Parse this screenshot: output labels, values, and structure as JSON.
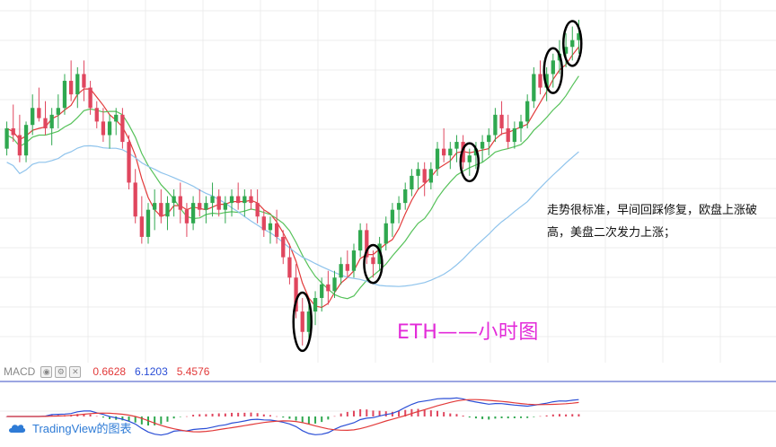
{
  "chart_data": {
    "type": "candlestick",
    "symbol_label": "ETH——小时图",
    "annotation": "走势很标准，早间回踩修复，欧盘上涨破高，美盘二次发力上涨；",
    "ylim": [
      0,
      100
    ],
    "candles": [
      [
        62,
        70,
        60,
        68
      ],
      [
        68,
        75,
        64,
        66
      ],
      [
        66,
        72,
        58,
        60
      ],
      [
        60,
        70,
        58,
        69
      ],
      [
        69,
        78,
        66,
        74
      ],
      [
        74,
        80,
        70,
        71
      ],
      [
        71,
        76,
        66,
        68
      ],
      [
        68,
        74,
        63,
        72
      ],
      [
        72,
        78,
        68,
        74
      ],
      [
        74,
        84,
        72,
        82
      ],
      [
        82,
        88,
        76,
        78
      ],
      [
        78,
        86,
        74,
        84
      ],
      [
        84,
        88,
        76,
        80
      ],
      [
        80,
        82,
        72,
        74
      ],
      [
        74,
        76,
        68,
        70
      ],
      [
        70,
        74,
        64,
        66
      ],
      [
        66,
        72,
        62,
        70
      ],
      [
        70,
        74,
        66,
        72
      ],
      [
        72,
        74,
        62,
        64
      ],
      [
        64,
        66,
        50,
        52
      ],
      [
        52,
        56,
        40,
        42
      ],
      [
        42,
        48,
        34,
        36
      ],
      [
        36,
        46,
        34,
        44
      ],
      [
        44,
        50,
        38,
        46
      ],
      [
        46,
        50,
        40,
        42
      ],
      [
        42,
        48,
        38,
        46
      ],
      [
        46,
        50,
        42,
        48
      ],
      [
        48,
        52,
        40,
        44
      ],
      [
        44,
        46,
        36,
        40
      ],
      [
        40,
        48,
        38,
        46
      ],
      [
        46,
        50,
        42,
        44
      ],
      [
        44,
        48,
        40,
        46
      ],
      [
        46,
        52,
        42,
        48
      ],
      [
        48,
        50,
        42,
        44
      ],
      [
        44,
        48,
        40,
        46
      ],
      [
        46,
        50,
        42,
        48
      ],
      [
        48,
        52,
        44,
        46
      ],
      [
        46,
        50,
        42,
        48
      ],
      [
        48,
        50,
        44,
        46
      ],
      [
        46,
        50,
        40,
        42
      ],
      [
        42,
        44,
        36,
        38
      ],
      [
        38,
        42,
        34,
        40
      ],
      [
        40,
        44,
        34,
        36
      ],
      [
        36,
        38,
        28,
        30
      ],
      [
        30,
        34,
        22,
        24
      ],
      [
        24,
        28,
        12,
        14
      ],
      [
        14,
        18,
        4,
        8
      ],
      [
        8,
        16,
        6,
        14
      ],
      [
        14,
        20,
        10,
        18
      ],
      [
        18,
        24,
        14,
        22
      ],
      [
        22,
        26,
        16,
        20
      ],
      [
        20,
        26,
        18,
        24
      ],
      [
        24,
        30,
        22,
        28
      ],
      [
        28,
        32,
        24,
        26
      ],
      [
        26,
        34,
        24,
        32
      ],
      [
        32,
        40,
        30,
        38
      ],
      [
        38,
        40,
        28,
        30
      ],
      [
        30,
        32,
        24,
        28
      ],
      [
        28,
        36,
        26,
        34
      ],
      [
        34,
        42,
        32,
        40
      ],
      [
        40,
        46,
        36,
        44
      ],
      [
        44,
        48,
        40,
        46
      ],
      [
        46,
        52,
        44,
        50
      ],
      [
        50,
        56,
        48,
        54
      ],
      [
        54,
        58,
        50,
        56
      ],
      [
        56,
        58,
        48,
        52
      ],
      [
        52,
        58,
        50,
        56
      ],
      [
        56,
        64,
        54,
        62
      ],
      [
        62,
        68,
        58,
        60
      ],
      [
        60,
        64,
        56,
        62
      ],
      [
        62,
        66,
        58,
        64
      ],
      [
        64,
        66,
        56,
        58
      ],
      [
        58,
        62,
        54,
        60
      ],
      [
        60,
        64,
        56,
        62
      ],
      [
        62,
        66,
        58,
        64
      ],
      [
        64,
        68,
        60,
        66
      ],
      [
        66,
        74,
        64,
        72
      ],
      [
        72,
        76,
        66,
        68
      ],
      [
        68,
        72,
        62,
        64
      ],
      [
        64,
        70,
        62,
        68
      ],
      [
        68,
        72,
        64,
        70
      ],
      [
        70,
        78,
        68,
        76
      ],
      [
        76,
        86,
        74,
        84
      ],
      [
        84,
        88,
        78,
        80
      ],
      [
        80,
        86,
        76,
        84
      ],
      [
        84,
        90,
        80,
        88
      ],
      [
        88,
        94,
        84,
        90
      ],
      [
        90,
        96,
        86,
        92
      ],
      [
        92,
        98,
        88,
        94
      ],
      [
        94,
        100,
        90,
        96
      ]
    ],
    "moving_averages": [
      {
        "name": "MA-fast",
        "color": "#e23a3a"
      },
      {
        "name": "MA-mid",
        "color": "#56c25a"
      },
      {
        "name": "MA-slow",
        "color": "#8ec3ec"
      }
    ],
    "highlighted_candles": [
      46,
      57,
      72,
      85,
      88
    ],
    "macd": {
      "label": "MACD",
      "values": [
        "0.6628",
        "6.1203",
        "5.4576"
      ],
      "value_colors": [
        "#e23a3a",
        "#2a4ed6",
        "#e23a3a"
      ]
    }
  },
  "branding": {
    "logo_text": "TradingView的图表",
    "color": "#2e7bd6"
  },
  "colors": {
    "up": "#2fa84f",
    "down": "#e0465e",
    "grid": "#ececec",
    "label": "#e32bd9"
  }
}
